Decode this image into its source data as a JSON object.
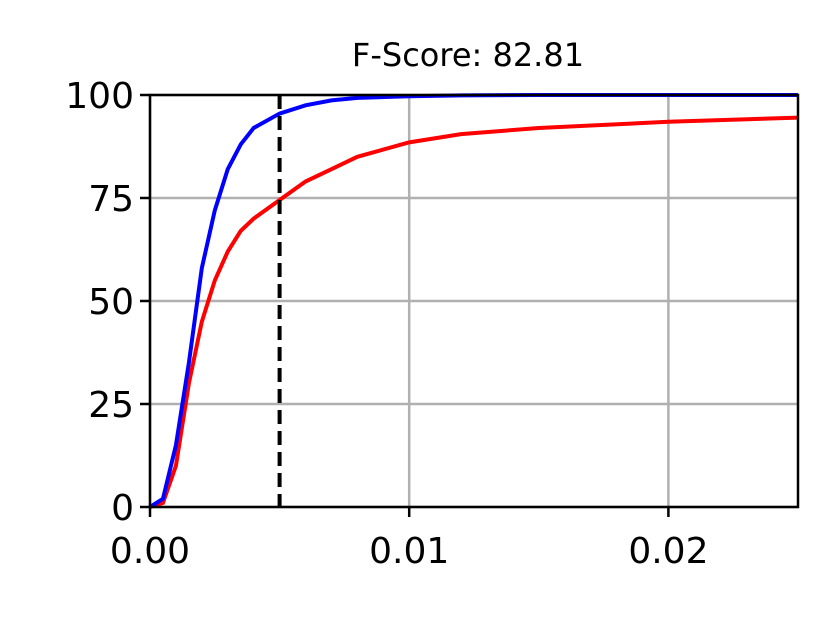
{
  "chart_data": {
    "type": "line",
    "title": "F-Score: 82.81",
    "x": [
      0,
      0.0005,
      0.001,
      0.0015,
      0.002,
      0.0025,
      0.003,
      0.0035,
      0.004,
      0.005,
      0.006,
      0.007,
      0.008,
      0.01,
      0.012,
      0.015,
      0.02,
      0.025
    ],
    "series": [
      {
        "color": "#ff0000",
        "values": [
          0,
          1,
          10,
          30,
          45,
          55,
          62,
          67,
          70,
          74.5,
          79,
          82,
          85,
          88.5,
          90.5,
          92,
          93.5,
          94.5
        ]
      },
      {
        "color": "#0000ff",
        "values": [
          0,
          2,
          15,
          35,
          58,
          72,
          82,
          88,
          92,
          95.5,
          97.5,
          98.7,
          99.3,
          99.7,
          99.9,
          100,
          100,
          100
        ]
      }
    ],
    "threshold": 0.005,
    "xlim": [
      0,
      0.025
    ],
    "xticks": [
      {
        "value": 0,
        "label": "0.00"
      },
      0.01,
      0.02
    ],
    "ylim": [
      0,
      100
    ],
    "yticks": [
      0,
      25,
      50,
      75,
      100
    ],
    "grid": true
  }
}
